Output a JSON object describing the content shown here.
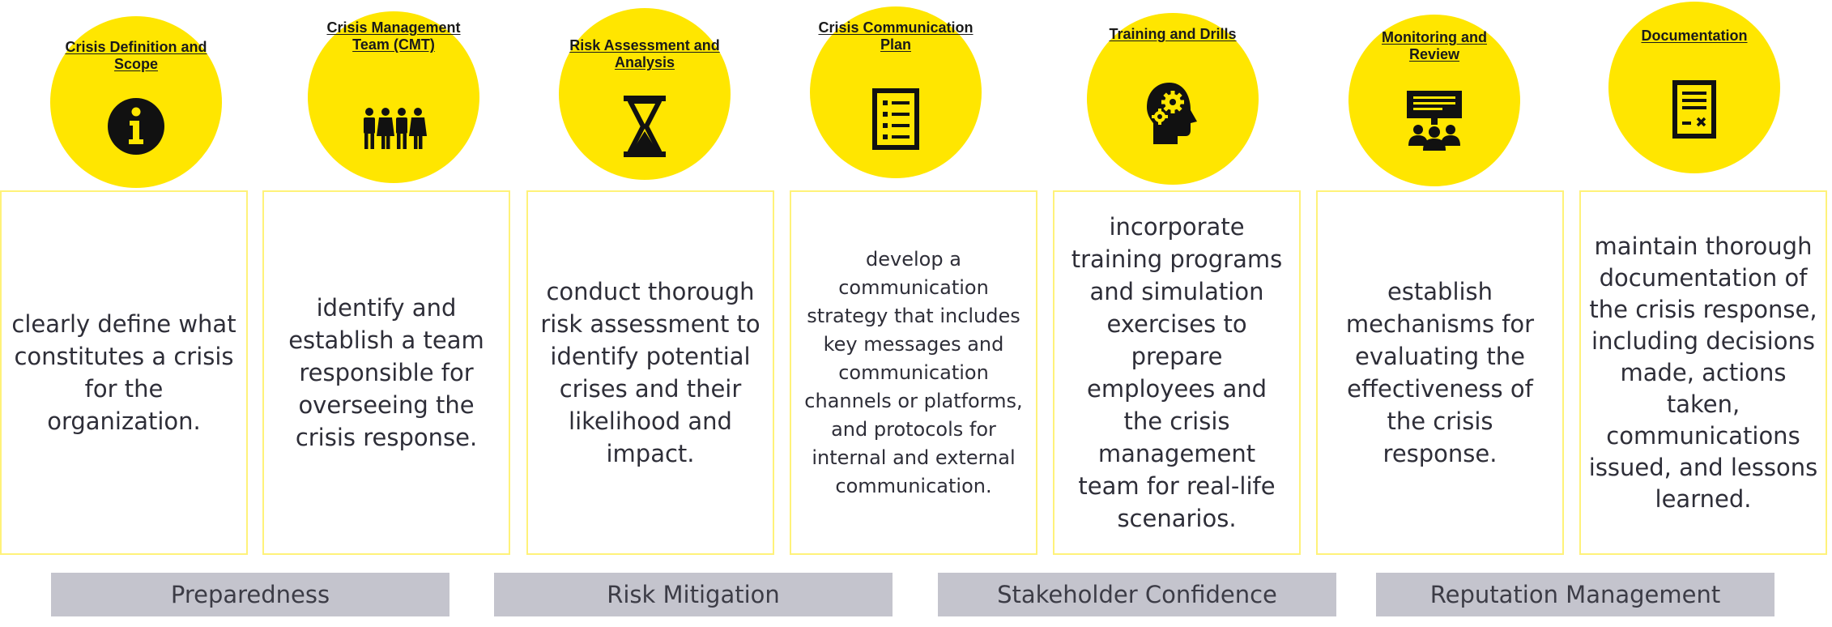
{
  "steps": [
    {
      "title": "Crisis Definition and Scope",
      "icon": "info-icon",
      "text": "clearly define what constitutes a crisis for the organization."
    },
    {
      "title": "Crisis Management Team (CMT)",
      "icon": "team-icon",
      "text": "identify and establish a team responsible for overseeing the crisis response."
    },
    {
      "title": "Risk Assessment and Analysis",
      "icon": "hourglass-icon",
      "text": "conduct thorough risk assessment to identify potential crises and their likelihood and impact."
    },
    {
      "title": "Crisis Communication Plan",
      "icon": "checklist-icon",
      "text": "develop a communication strategy that includes key messages and communication channels or platforms, and protocols for internal and external communication."
    },
    {
      "title": "Training and Drills",
      "icon": "head-gears-icon",
      "text": "incorporate training programs and simulation exercises to prepare employees and the crisis management team for real-life scenarios."
    },
    {
      "title": "Monitoring and Review",
      "icon": "meeting-presentation-icon",
      "text": "establish mechanisms for evaluating the effectiveness of the crisis response."
    },
    {
      "title": "Documentation",
      "icon": "document-icon",
      "text": "maintain thorough documentation of the crisis response, including decisions made, actions taken, communications issued, and lessons learned."
    }
  ],
  "outcomes": [
    "Preparedness",
    "Risk Mitigation",
    "Stakeholder Confidence",
    "Reputation Management"
  ],
  "colors": {
    "circle": "#ffe600",
    "card_border": "#fff27a",
    "bar": "#c4c4cd",
    "text": "#2e2e38"
  }
}
